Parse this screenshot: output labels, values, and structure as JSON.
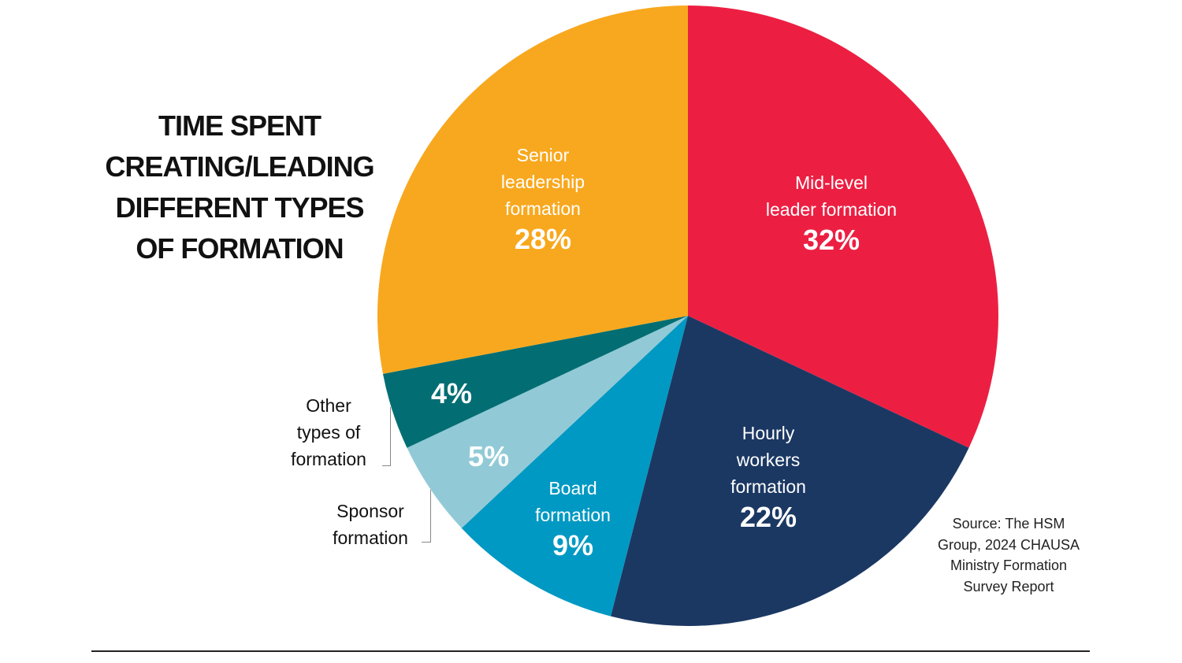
{
  "title_lines": [
    "TIME SPENT",
    "CREATING/LEADING",
    "DIFFERENT TYPES",
    "OF FORMATION"
  ],
  "source_lines": [
    "Source: The HSM",
    "Group, 2024 CHAUSA",
    "Ministry Formation",
    "Survey Report"
  ],
  "chart_data": {
    "type": "pie",
    "title": "Time spent creating/leading different types of formation",
    "start": "top",
    "direction": "clockwise",
    "slices": [
      {
        "label": "Mid-level leader formation",
        "label_lines": [
          "Mid-level",
          "leader formation"
        ],
        "value": 32,
        "display": "32%",
        "color": "#EC1F42",
        "label_placement": "inside"
      },
      {
        "label": "Hourly workers formation",
        "label_lines": [
          "Hourly",
          "workers",
          "formation"
        ],
        "value": 22,
        "display": "22%",
        "color": "#1B3863",
        "label_placement": "inside"
      },
      {
        "label": "Board formation",
        "label_lines": [
          "Board",
          "formation"
        ],
        "value": 9,
        "display": "9%",
        "color": "#0099C3",
        "label_placement": "inside"
      },
      {
        "label": "Sponsor formation",
        "label_lines": [
          "Sponsor",
          "formation"
        ],
        "value": 5,
        "display": "5%",
        "color": "#91CAD6",
        "label_placement": "outside"
      },
      {
        "label": "Other types of formation",
        "label_lines": [
          "Other",
          "types of",
          "formation"
        ],
        "value": 4,
        "display": "4%",
        "color": "#026E73",
        "label_placement": "outside"
      },
      {
        "label": "Senior leadership formation",
        "label_lines": [
          "Senior",
          "leadership",
          "formation"
        ],
        "value": 28,
        "display": "28%",
        "color": "#F8A81E",
        "label_placement": "inside"
      }
    ]
  }
}
